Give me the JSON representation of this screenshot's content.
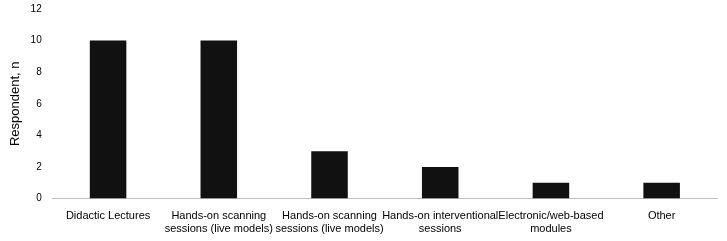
{
  "chart_data": {
    "type": "bar",
    "y_label": "Respondent, n",
    "categories": [
      "Didactic Lectures",
      "Hands-on scanning sessions (live models)",
      "Hands-on scanning sessions (live models)",
      "Hands-on interventional sessions",
      "Electronic/web-based modules",
      "Other"
    ],
    "values": [
      10,
      10,
      3,
      2,
      1,
      1
    ],
    "color": "#111111",
    "ylim": [
      0,
      12
    ],
    "yticks": [
      0,
      2,
      4,
      6,
      8,
      10,
      12
    ],
    "grid": false
  }
}
